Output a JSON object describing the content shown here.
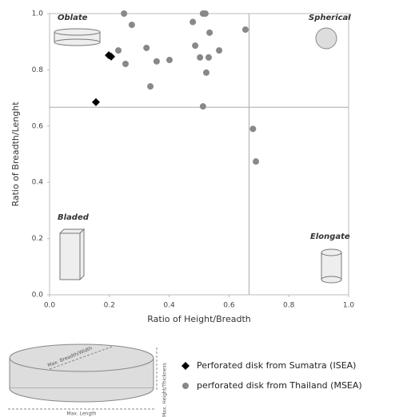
{
  "chart_data": {
    "type": "scatter",
    "xlabel": "Ratio of Height/Breadth",
    "ylabel": "Ratio of Breadth/Lenght",
    "xlim": [
      0,
      1
    ],
    "ylim": [
      0,
      1
    ],
    "xticks": [
      {
        "value": 0,
        "label": "0.0"
      },
      0.2,
      0.4,
      0.6,
      0.8,
      {
        "value": 1,
        "label": "1.0"
      }
    ],
    "yticks": [
      {
        "value": 0,
        "label": "0.0"
      },
      0.2,
      0.4,
      0.6,
      0.8,
      {
        "value": 1,
        "label": "1.0"
      }
    ],
    "xline": 0.667,
    "yline": 0.667,
    "annotations": [
      "Oblate",
      "Spherical",
      "Bladed",
      "Elongate"
    ],
    "diagram_labels": [
      "Max. Breadth/Width",
      "Max. Height/Thickness",
      "Max. Length"
    ],
    "series": [
      {
        "name": "Perforated disk from Sumatra (ISEA)",
        "color": "#000000",
        "marker": "diamond",
        "x": [
          0.198,
          0.206,
          0.155
        ],
        "values": [
          0.852,
          0.847,
          0.685
        ]
      },
      {
        "name": "perforated disk from Thailand (MSEA)",
        "color": "#888888",
        "marker": "circle",
        "x": [
          0.249,
          0.513,
          0.521,
          0.275,
          0.479,
          0.655,
          0.535,
          0.23,
          0.324,
          0.487,
          0.567,
          0.254,
          0.358,
          0.401,
          0.503,
          0.532,
          0.524,
          0.337,
          0.513,
          0.68,
          0.69
        ],
        "values": [
          1.0,
          1.0,
          1.0,
          0.96,
          0.97,
          0.943,
          0.932,
          0.869,
          0.878,
          0.886,
          0.869,
          0.821,
          0.83,
          0.835,
          0.844,
          0.844,
          0.79,
          0.741,
          0.67,
          0.59,
          0.474
        ]
      }
    ]
  }
}
